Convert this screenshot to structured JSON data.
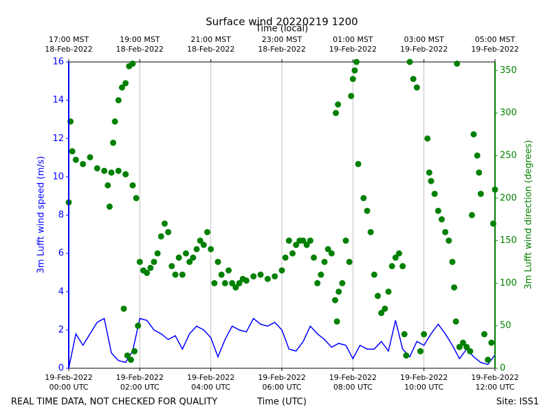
{
  "chart_data": {
    "type": "line",
    "title": "Surface wind 20220219 1200",
    "xlabel": "Time (UTC)",
    "x2label": "Time (local)",
    "ylabel": "3m Lufft wind speed (m/s)",
    "y2label": "3m Lufft wind direction (degrees)",
    "note": "REAL TIME DATA, NOT CHECKED FOR QUALITY",
    "site": "Site: ISS1",
    "grid": "x",
    "xlim": [
      0,
      12
    ],
    "xticks": [
      {
        "value": 0,
        "label": "19-Feb-2022\n00:00 UTC"
      },
      {
        "value": 2,
        "label": "19-Feb-2022\n02:00 UTC"
      },
      {
        "value": 4,
        "label": "19-Feb-2022\n04:00 UTC"
      },
      {
        "value": 6,
        "label": "19-Feb-2022\n06:00 UTC"
      },
      {
        "value": 8,
        "label": "19-Feb-2022\n08:00 UTC"
      },
      {
        "value": 10,
        "label": "19-Feb-2022\n10:00 UTC"
      },
      {
        "value": 12,
        "label": "19-Feb-2022\n12:00 UTC"
      }
    ],
    "x2ticks": [
      {
        "value": 0,
        "label": "17:00 MST\n18-Feb-2022"
      },
      {
        "value": 2,
        "label": "19:00 MST\n18-Feb-2022"
      },
      {
        "value": 4,
        "label": "21:00 MST\n18-Feb-2022"
      },
      {
        "value": 6,
        "label": "23:00 MST\n18-Feb-2022"
      },
      {
        "value": 8,
        "label": "01:00 MST\n19-Feb-2022"
      },
      {
        "value": 10,
        "label": "03:00 MST\n19-Feb-2022"
      },
      {
        "value": 12,
        "label": "05:00 MST\n19-Feb-2022"
      }
    ],
    "ylim": [
      0,
      16
    ],
    "yticks": [
      0,
      2,
      4,
      6,
      8,
      10,
      12,
      14,
      16
    ],
    "ycolor": "#0000ff",
    "y2lim": [
      0,
      360
    ],
    "y2ticks": [
      0,
      50,
      100,
      150,
      200,
      250,
      300,
      350
    ],
    "y2color": "#008000",
    "series": [
      {
        "type": "line",
        "color": "#0000ff",
        "x": [
          0,
          0.2,
          0.4,
          0.6,
          0.8,
          1.0,
          1.2,
          1.4,
          1.6,
          1.8,
          2.0,
          2.2,
          2.4,
          2.6,
          2.8,
          3.0,
          3.2,
          3.4,
          3.6,
          3.8,
          4.0,
          4.2,
          4.4,
          4.6,
          4.8,
          5.0,
          5.2,
          5.4,
          5.6,
          5.8,
          6.0,
          6.2,
          6.4,
          6.6,
          6.8,
          7.0,
          7.2,
          7.4,
          7.6,
          7.8,
          8.0,
          8.2,
          8.4,
          8.6,
          8.8,
          9.0,
          9.2,
          9.4,
          9.6,
          9.8,
          10.0,
          10.2,
          10.4,
          10.6,
          10.8,
          11.0,
          11.2,
          11.4,
          11.6,
          11.8,
          12.0
        ],
        "values": [
          0,
          1.8,
          1.2,
          1.8,
          2.4,
          2.6,
          0.8,
          0.4,
          0.3,
          0.9,
          2.6,
          2.5,
          2.0,
          1.8,
          1.5,
          1.7,
          1.0,
          1.8,
          2.2,
          2.0,
          1.6,
          0.6,
          1.5,
          2.2,
          2.0,
          1.9,
          2.6,
          2.3,
          2.2,
          2.4,
          2.0,
          1.0,
          0.9,
          1.4,
          2.2,
          1.8,
          1.5,
          1.1,
          1.3,
          1.2,
          0.5,
          1.2,
          1.0,
          1.0,
          1.4,
          0.9,
          2.5,
          1.0,
          0.6,
          1.4,
          1.2,
          1.8,
          2.3,
          1.8,
          1.2,
          0.5,
          1.0,
          0.6,
          0.3,
          0.2,
          0.7
        ]
      },
      {
        "type": "scatter",
        "axis": "y2",
        "color": "#008000",
        "x": [
          0,
          0.05,
          0.1,
          0.2,
          0.4,
          0.6,
          0.8,
          1.0,
          1.2,
          1.4,
          1.6,
          1.8,
          1.9,
          1.1,
          1.15,
          1.25,
          1.3,
          1.4,
          1.5,
          1.6,
          1.7,
          1.8,
          1.55,
          1.65,
          1.75,
          1.85,
          1.95,
          2.0,
          2.1,
          2.2,
          2.3,
          2.4,
          2.5,
          2.6,
          2.7,
          2.8,
          2.9,
          3.0,
          3.1,
          3.2,
          3.3,
          3.4,
          3.5,
          3.6,
          3.7,
          3.8,
          3.9,
          4.0,
          4.1,
          4.2,
          4.3,
          4.4,
          4.5,
          4.6,
          4.7,
          4.8,
          4.9,
          5.0,
          5.2,
          5.4,
          5.6,
          5.8,
          6.0,
          6.1,
          6.2,
          6.3,
          6.4,
          6.5,
          6.6,
          6.7,
          6.8,
          6.9,
          7.0,
          7.1,
          7.2,
          7.3,
          7.4,
          7.5,
          7.55,
          7.6,
          7.7,
          7.8,
          7.9,
          7.52,
          7.58,
          7.95,
          8.0,
          8.05,
          8.1,
          8.15,
          8.3,
          8.4,
          8.5,
          8.6,
          8.7,
          8.8,
          8.9,
          9.0,
          9.1,
          9.2,
          9.3,
          9.4,
          9.45,
          9.5,
          9.6,
          9.7,
          9.8,
          9.9,
          10.0,
          10.1,
          10.15,
          10.2,
          10.3,
          10.4,
          10.5,
          10.6,
          10.7,
          10.8,
          10.85,
          10.9,
          10.93,
          11.0,
          11.1,
          11.2,
          11.3,
          11.35,
          11.4,
          11.5,
          11.55,
          11.6,
          11.7,
          11.8,
          11.9,
          11.95,
          12.0
        ],
        "values": [
          195,
          290,
          255,
          245,
          240,
          248,
          235,
          232,
          230,
          232,
          228,
          215,
          200,
          215,
          190,
          265,
          290,
          315,
          330,
          335,
          355,
          358,
          70,
          15,
          10,
          20,
          50,
          125,
          115,
          112,
          118,
          125,
          135,
          155,
          170,
          160,
          120,
          110,
          130,
          110,
          135,
          125,
          130,
          140,
          150,
          145,
          160,
          140,
          100,
          125,
          110,
          100,
          115,
          100,
          95,
          100,
          105,
          103,
          108,
          110,
          105,
          108,
          115,
          130,
          150,
          135,
          145,
          150,
          150,
          145,
          150,
          130,
          100,
          110,
          125,
          140,
          135,
          80,
          55,
          90,
          100,
          150,
          125,
          300,
          310,
          320,
          340,
          350,
          360,
          240,
          200,
          185,
          160,
          110,
          85,
          65,
          70,
          90,
          120,
          130,
          135,
          120,
          40,
          15,
          360,
          340,
          330,
          20,
          40,
          270,
          230,
          220,
          205,
          185,
          175,
          160,
          150,
          125,
          95,
          55,
          358,
          25,
          30,
          25,
          20,
          180,
          275,
          250,
          230,
          205,
          40,
          10,
          30,
          170,
          210
        ]
      }
    ]
  }
}
